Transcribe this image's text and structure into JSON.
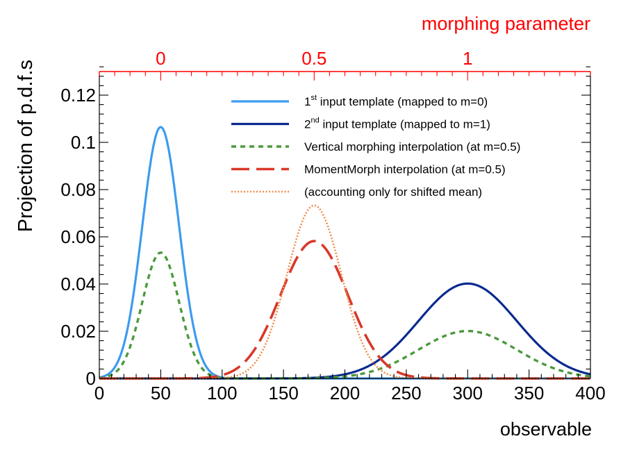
{
  "chart_data": {
    "type": "line",
    "ylabel": "Projection of p.d.f.s",
    "xlabel": "observable",
    "top_axis_label": "morphing parameter",
    "xlim": [
      0,
      400
    ],
    "ylim": [
      0,
      0.13
    ],
    "x_ticks": [
      0,
      50,
      100,
      150,
      200,
      250,
      300,
      350,
      400
    ],
    "x_tick_labels": [
      "0",
      "50",
      "100",
      "150",
      "200",
      "250",
      "300",
      "350",
      "400"
    ],
    "y_ticks": [
      0,
      0.02,
      0.04,
      0.06,
      0.08,
      0.1,
      0.12
    ],
    "y_tick_labels": [
      "0",
      "0.02",
      "0.04",
      "0.06",
      "0.08",
      "0.1",
      "0.12"
    ],
    "top_axis": {
      "color": "#ff0000",
      "ticks": [
        {
          "x": 50,
          "label": "0"
        },
        {
          "x": 175,
          "label": "0.5"
        },
        {
          "x": 300,
          "label": "1"
        }
      ]
    },
    "series": [
      {
        "name": "1st input template (mapped to m=0)",
        "legend_main": "1",
        "legend_sup": "st",
        "legend_rest": " input template (mapped to m=0)",
        "color": "#3d9bef",
        "style": "solid",
        "mean": 50,
        "sigma": 15,
        "peak": 0.1065
      },
      {
        "name": "2nd input template (mapped to m=1)",
        "legend_main": "2",
        "legend_sup": "nd",
        "legend_rest": " input template (mapped to m=1)",
        "color": "#0a2a8f",
        "style": "solid",
        "mean": 300,
        "sigma": 40,
        "peak": 0.0402
      },
      {
        "name": "Vertical morphing interpolation (at m=0.5)",
        "legend_main": "Vertical morphing interpolation (at m=0.5)",
        "color": "#4a9a3c",
        "style": "dashed",
        "components": [
          {
            "mean": 50,
            "sigma": 15,
            "peak": 0.0533
          },
          {
            "mean": 300,
            "sigma": 40,
            "peak": 0.0201
          }
        ]
      },
      {
        "name": "MomentMorph interpolation (at m=0.5)",
        "legend_main": "MomentMorph interpolation (at m=0.5)",
        "color": "#d9382a",
        "style": "longdash",
        "mean": 175,
        "sigma": 27.5,
        "peak": 0.0582
      },
      {
        "name": "(accounting only for shifted mean)",
        "legend_main": "(accounting only for shifted mean)",
        "color": "#f08c4a",
        "style": "dotted",
        "mean": 175,
        "sigma": 22,
        "peak": 0.0733
      }
    ]
  }
}
